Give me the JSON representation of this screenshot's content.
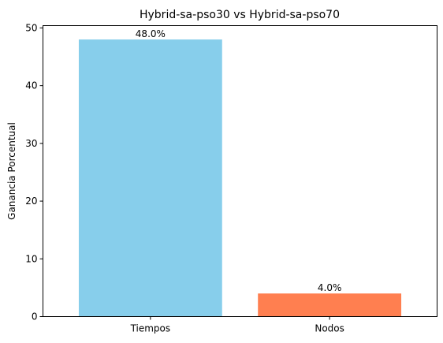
{
  "chart_data": {
    "type": "bar",
    "title": "Hybrid-sa-pso30 vs Hybrid-sa-pso70",
    "xlabel": "",
    "ylabel": "Ganancia Porcentual",
    "categories": [
      "Tiempos",
      "Nodos"
    ],
    "values": [
      48.0,
      4.0
    ],
    "value_labels": [
      "48.0%",
      "4.0%"
    ],
    "colors": [
      "#87CEEB",
      "#FF7F50"
    ],
    "ylim": [
      0,
      50.4
    ],
    "yticks": [
      0,
      10,
      20,
      30,
      40,
      50
    ],
    "ytick_labels": [
      "0",
      "10",
      "20",
      "30",
      "40",
      "50"
    ],
    "grid": false,
    "legend": "none"
  }
}
